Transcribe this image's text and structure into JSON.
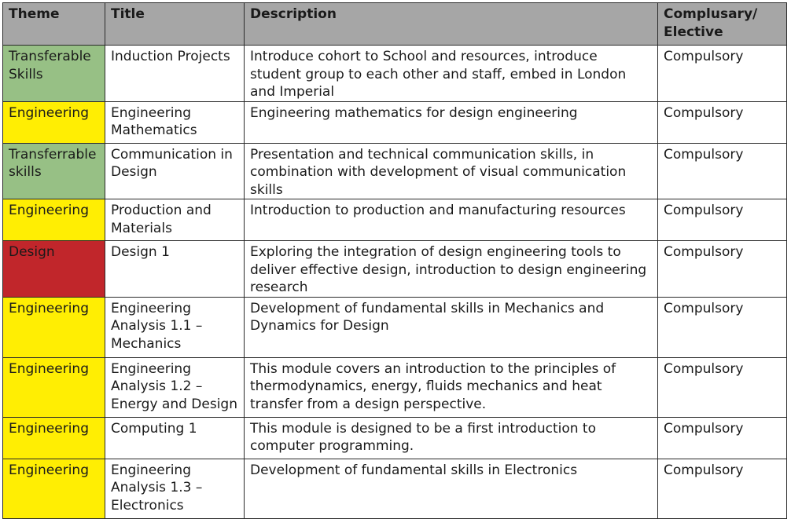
{
  "colors": {
    "header_bg": "#a6a6a6",
    "transferable": "#97c085",
    "engineering": "#ffee03",
    "design": "#c1262b"
  },
  "headers": {
    "theme": "Theme",
    "title": "Title",
    "description": "Description",
    "compulsory": "Complusary/ Elective"
  },
  "rows": [
    {
      "theme": "Transferable Skills",
      "theme_color": "#97c085",
      "title": "Induction Projects",
      "description": "Introduce cohort to School and resources, introduce student group to each other and staff, embed in London and Imperial",
      "compulsory": "Compulsory"
    },
    {
      "theme": "Engineering",
      "theme_color": "#ffee03",
      "title": "Engineering Mathematics",
      "description": "Engineering mathematics for design engineering",
      "compulsory": "Compulsory"
    },
    {
      "theme": "Transferrable skills",
      "theme_color": "#97c085",
      "title": "Communication in Design",
      "description": "Presentation and technical communication skills, in combination with development of visual communication skills",
      "compulsory": "Compulsory"
    },
    {
      "theme": "Engineering",
      "theme_color": "#ffee03",
      "title": "Production and Materials",
      "description": "Introduction to production and manufacturing resources",
      "compulsory": "Compulsory"
    },
    {
      "theme": "Design",
      "theme_color": "#c1262b",
      "title": "Design 1",
      "description": "Exploring the integration of design engineering tools to deliver effective design, introduction to design engineering research",
      "compulsory": "Compulsory"
    },
    {
      "theme": "Engineering",
      "theme_color": "#ffee03",
      "title": "Engineering Analysis 1.1 – Mechanics",
      "description": "Development of fundamental skills in Mechanics and Dynamics for Design",
      "compulsory": "Compulsory"
    },
    {
      "theme": "Engineering",
      "theme_color": "#ffee03",
      "title": "Engineering Analysis 1.2 – Energy and Design",
      "description": "This module covers an introduction to the principles of thermodynamics, energy, fluids mechanics and heat transfer from a design perspective.",
      "compulsory": "Compulsory"
    },
    {
      "theme": "Engineering",
      "theme_color": "#ffee03",
      "title": "Computing 1",
      "description": "This module is designed to be a first introduction to computer programming.",
      "compulsory": "Compulsory"
    },
    {
      "theme": "Engineering",
      "theme_color": "#ffee03",
      "title": "Engineering Analysis 1.3 – Electronics",
      "description": "Development of fundamental skills in Electronics",
      "compulsory": "Compulsory"
    }
  ]
}
